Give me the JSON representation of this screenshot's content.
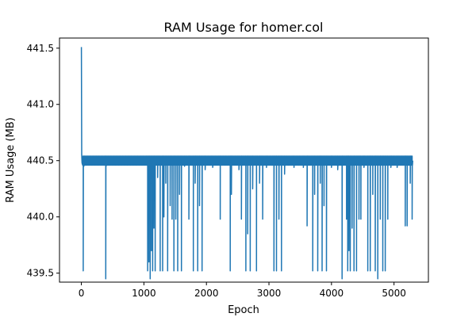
{
  "chart_data": {
    "type": "line",
    "title": "RAM Usage for homer.col",
    "xlabel": "Epoch",
    "ylabel": "RAM Usage (MB)",
    "xlim": [
      -350,
      5550
    ],
    "ylim": [
      439.42,
      441.59
    ],
    "x_ticks": [
      0,
      1000,
      2000,
      3000,
      4000,
      5000
    ],
    "x_tick_labels": [
      "0",
      "1000",
      "2000",
      "3000",
      "4000",
      "5000"
    ],
    "y_ticks": [
      439.5,
      440.0,
      440.5,
      441.0,
      441.5
    ],
    "y_tick_labels": [
      "439.5",
      "440.0",
      "440.5",
      "441.0",
      "441.5"
    ],
    "grid": false,
    "legend": "none",
    "colors": {
      "series": "#1f77b4",
      "axes": "#000000",
      "background": "#ffffff"
    },
    "series": [
      {
        "baseline": {
          "x_range": [
            0,
            5300
          ],
          "low": 440.46,
          "high": 440.54
        },
        "initial_points": [
          {
            "x": 0,
            "y": 441.51
          },
          {
            "x": 5,
            "y": 440.55
          },
          {
            "x": 10,
            "y": 440.48
          }
        ],
        "drops": [
          {
            "x": 30,
            "y": 439.52
          },
          {
            "x": 40,
            "y": 440.45
          },
          {
            "x": 390,
            "y": 439.45
          },
          {
            "x": 395,
            "y": 440.45
          },
          {
            "x": 1060,
            "y": 439.52
          },
          {
            "x": 1080,
            "y": 439.6
          },
          {
            "x": 1100,
            "y": 439.45
          },
          {
            "x": 1120,
            "y": 439.7
          },
          {
            "x": 1140,
            "y": 439.52
          },
          {
            "x": 1160,
            "y": 439.9
          },
          {
            "x": 1180,
            "y": 439.52
          },
          {
            "x": 1220,
            "y": 440.35
          },
          {
            "x": 1260,
            "y": 439.52
          },
          {
            "x": 1300,
            "y": 439.52
          },
          {
            "x": 1320,
            "y": 440.0
          },
          {
            "x": 1350,
            "y": 440.3
          },
          {
            "x": 1380,
            "y": 439.52
          },
          {
            "x": 1420,
            "y": 440.1
          },
          {
            "x": 1450,
            "y": 439.98
          },
          {
            "x": 1480,
            "y": 439.52
          },
          {
            "x": 1510,
            "y": 439.98
          },
          {
            "x": 1540,
            "y": 439.52
          },
          {
            "x": 1570,
            "y": 440.2
          },
          {
            "x": 1600,
            "y": 439.52
          },
          {
            "x": 1650,
            "y": 440.45
          },
          {
            "x": 1720,
            "y": 439.98
          },
          {
            "x": 1790,
            "y": 439.52
          },
          {
            "x": 1820,
            "y": 440.3
          },
          {
            "x": 1860,
            "y": 439.52
          },
          {
            "x": 1890,
            "y": 440.1
          },
          {
            "x": 1930,
            "y": 439.52
          },
          {
            "x": 1980,
            "y": 440.42
          },
          {
            "x": 2100,
            "y": 440.44
          },
          {
            "x": 2220,
            "y": 439.98
          },
          {
            "x": 2380,
            "y": 439.52
          },
          {
            "x": 2400,
            "y": 440.2
          },
          {
            "x": 2520,
            "y": 440.42
          },
          {
            "x": 2560,
            "y": 439.98
          },
          {
            "x": 2630,
            "y": 439.52
          },
          {
            "x": 2660,
            "y": 439.85
          },
          {
            "x": 2700,
            "y": 439.52
          },
          {
            "x": 2740,
            "y": 440.25
          },
          {
            "x": 2800,
            "y": 439.52
          },
          {
            "x": 2850,
            "y": 440.3
          },
          {
            "x": 2900,
            "y": 439.98
          },
          {
            "x": 2960,
            "y": 440.44
          },
          {
            "x": 3080,
            "y": 439.52
          },
          {
            "x": 3120,
            "y": 439.52
          },
          {
            "x": 3160,
            "y": 439.98
          },
          {
            "x": 3200,
            "y": 439.52
          },
          {
            "x": 3250,
            "y": 440.38
          },
          {
            "x": 3400,
            "y": 440.44
          },
          {
            "x": 3550,
            "y": 440.44
          },
          {
            "x": 3610,
            "y": 439.92
          },
          {
            "x": 3700,
            "y": 439.52
          },
          {
            "x": 3730,
            "y": 440.2
          },
          {
            "x": 3780,
            "y": 439.52
          },
          {
            "x": 3820,
            "y": 440.3
          },
          {
            "x": 3850,
            "y": 439.52
          },
          {
            "x": 3880,
            "y": 440.1
          },
          {
            "x": 3920,
            "y": 439.52
          },
          {
            "x": 4000,
            "y": 440.44
          },
          {
            "x": 4100,
            "y": 440.42
          },
          {
            "x": 4170,
            "y": 439.45
          },
          {
            "x": 4240,
            "y": 439.98
          },
          {
            "x": 4260,
            "y": 439.52
          },
          {
            "x": 4280,
            "y": 439.7
          },
          {
            "x": 4300,
            "y": 439.52
          },
          {
            "x": 4330,
            "y": 439.9
          },
          {
            "x": 4360,
            "y": 439.52
          },
          {
            "x": 4400,
            "y": 439.52
          },
          {
            "x": 4440,
            "y": 439.98
          },
          {
            "x": 4470,
            "y": 439.98
          },
          {
            "x": 4520,
            "y": 440.44
          },
          {
            "x": 4580,
            "y": 439.52
          },
          {
            "x": 4620,
            "y": 439.52
          },
          {
            "x": 4660,
            "y": 440.2
          },
          {
            "x": 4700,
            "y": 439.52
          },
          {
            "x": 4740,
            "y": 439.45
          },
          {
            "x": 4780,
            "y": 439.98
          },
          {
            "x": 4820,
            "y": 439.52
          },
          {
            "x": 4860,
            "y": 439.52
          },
          {
            "x": 4900,
            "y": 439.98
          },
          {
            "x": 4950,
            "y": 440.44
          },
          {
            "x": 5050,
            "y": 440.44
          },
          {
            "x": 5180,
            "y": 439.92
          },
          {
            "x": 5210,
            "y": 439.92
          },
          {
            "x": 5260,
            "y": 440.3
          },
          {
            "x": 5290,
            "y": 439.98
          }
        ],
        "final_point": {
          "x": 5300,
          "y": 440.5
        }
      }
    ]
  }
}
